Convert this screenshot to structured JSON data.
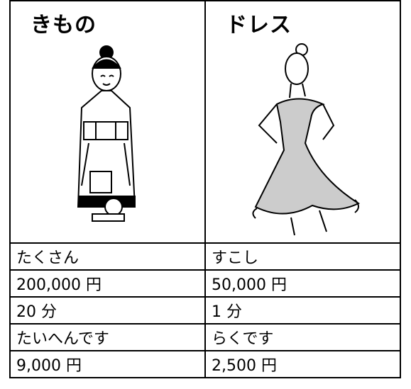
{
  "table": {
    "header": [
      "きもの",
      "ドレス"
    ],
    "rows": [
      [
        "たくさん",
        "すこし"
      ],
      [
        "200,000 円",
        "50,000 円"
      ],
      [
        "20 分",
        "1 分"
      ],
      [
        "たいへんです",
        "らくです"
      ],
      [
        "9,000 円",
        "2,500 円"
      ]
    ]
  }
}
